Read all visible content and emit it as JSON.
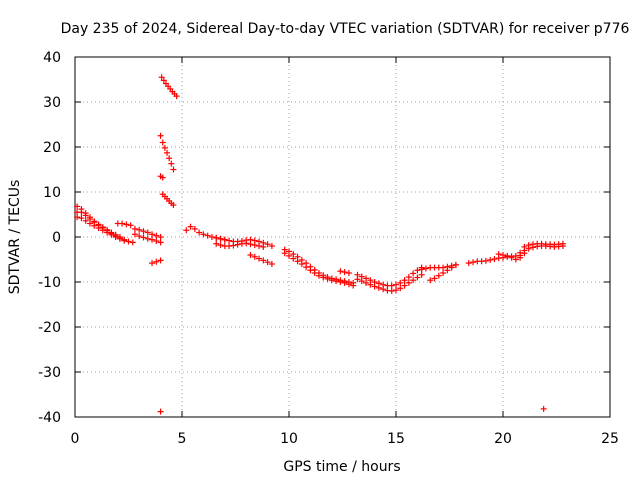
{
  "chart_data": {
    "type": "scatter",
    "title": "Day 235 of 2024, Sidereal Day-to-day VTEC variation (SDTVAR) for receiver p776",
    "xlabel": "GPS time / hours",
    "ylabel": "SDTVAR / TECUs",
    "xlim": [
      0,
      25
    ],
    "ylim": [
      -40,
      40
    ],
    "xticks": [
      0,
      5,
      10,
      15,
      20,
      25
    ],
    "yticks": [
      -40,
      -30,
      -20,
      -10,
      0,
      10,
      20,
      30,
      40
    ],
    "grid": true,
    "marker": "+",
    "color": "#ff0000",
    "series": [
      {
        "name": "SDTVAR",
        "segments": [
          {
            "x": [
              0.1,
              0.3,
              0.5,
              0.7,
              0.9,
              1.1,
              1.3,
              1.5,
              1.7,
              1.9,
              2.1
            ],
            "y": [
              5.5,
              5.5,
              4.8,
              4.0,
              3.3,
              2.6,
              2.0,
              1.4,
              0.8,
              0.2,
              -0.3
            ]
          },
          {
            "x": [
              0.1,
              0.3,
              0.5,
              0.7,
              0.9,
              1.1,
              1.3,
              1.5,
              1.7,
              1.9,
              2.1,
              2.3
            ],
            "y": [
              6.8,
              6.2,
              5.3,
              4.4,
              3.5,
              2.8,
              2.2,
              1.6,
              1.0,
              0.5,
              0.0,
              -0.6
            ]
          },
          {
            "x": [
              0.1,
              0.3,
              0.5,
              0.7,
              0.9,
              1.1,
              1.3,
              1.5,
              1.7,
              1.9,
              2.1,
              2.3,
              2.5,
              2.7
            ],
            "y": [
              4.4,
              4.2,
              3.6,
              3.0,
              2.5,
              2.0,
              1.5,
              1.0,
              0.5,
              0.0,
              -0.4,
              -0.8,
              -1.0,
              -1.2
            ]
          },
          {
            "x": [
              2.0,
              2.2,
              2.4,
              2.6
            ],
            "y": [
              3.0,
              3.0,
              2.8,
              2.6
            ]
          },
          {
            "x": [
              2.8,
              3.0,
              3.2,
              3.4,
              3.6,
              3.8,
              4.0
            ],
            "y": [
              1.8,
              1.6,
              1.3,
              1.0,
              0.6,
              0.3,
              0.0
            ]
          },
          {
            "x": [
              2.8,
              3.0,
              3.2,
              3.4,
              3.6,
              3.8,
              4.0
            ],
            "y": [
              0.6,
              0.2,
              -0.1,
              -0.4,
              -0.6,
              -0.9,
              -1.2
            ]
          },
          {
            "x": [
              3.6,
              3.8,
              4.0
            ],
            "y": [
              -5.8,
              -5.5,
              -5.2
            ]
          },
          {
            "x": [
              4.0,
              4.1
            ],
            "y": [
              13.5,
              13.2
            ]
          },
          {
            "x": [
              4.05,
              4.15,
              4.25,
              4.35,
              4.45,
              4.55,
              4.65,
              4.75
            ],
            "y": [
              35.5,
              34.8,
              34.1,
              33.5,
              32.9,
              32.3,
              31.8,
              31.3
            ]
          },
          {
            "x": [
              4.0,
              4.1,
              4.2,
              4.3,
              4.4,
              4.5,
              4.6
            ],
            "y": [
              22.5,
              21.0,
              19.8,
              18.7,
              17.5,
              16.3,
              15.0
            ]
          },
          {
            "x": [
              4.1,
              4.2,
              4.3,
              4.4,
              4.5,
              4.6
            ],
            "y": [
              9.5,
              9.0,
              8.5,
              8.0,
              7.5,
              7.1
            ]
          },
          {
            "x": [
              5.2,
              5.4,
              5.6,
              5.8,
              6.0,
              6.2,
              6.4,
              6.6,
              6.8,
              7.0
            ],
            "y": [
              1.5,
              2.3,
              1.8,
              1.0,
              0.6,
              0.3,
              0.0,
              -0.2,
              -0.4,
              -0.6
            ]
          },
          {
            "x": [
              6.6,
              6.8,
              7.0,
              7.2,
              7.4,
              7.6,
              7.8,
              8.0,
              8.2,
              8.4,
              8.6,
              8.8,
              9.0,
              9.2
            ],
            "y": [
              -0.2,
              -0.4,
              -0.6,
              -0.8,
              -1.0,
              -1.0,
              -0.9,
              -0.7,
              -0.6,
              -0.8,
              -1.0,
              -1.3,
              -1.6,
              -2.0
            ]
          },
          {
            "x": [
              6.6,
              6.8,
              7.0,
              7.2,
              7.4,
              7.6,
              7.8,
              8.0,
              8.2,
              8.4,
              8.6,
              8.8
            ],
            "y": [
              -1.5,
              -1.8,
              -2.0,
              -2.0,
              -1.9,
              -1.7,
              -1.5,
              -1.4,
              -1.6,
              -1.8,
              -2.0,
              -2.2
            ]
          },
          {
            "x": [
              8.2,
              8.4,
              8.6,
              8.8,
              9.0,
              9.2
            ],
            "y": [
              -4.0,
              -4.4,
              -4.8,
              -5.2,
              -5.6,
              -6.0
            ]
          },
          {
            "x": [
              9.8,
              10.0,
              10.2,
              10.4,
              10.6,
              10.8,
              11.0,
              11.2,
              11.4,
              11.6,
              11.8,
              12.0,
              12.2,
              12.4,
              12.6,
              12.8,
              13.0
            ],
            "y": [
              -2.8,
              -3.2,
              -3.8,
              -4.4,
              -5.1,
              -5.8,
              -6.6,
              -7.3,
              -8.0,
              -8.5,
              -8.9,
              -9.2,
              -9.4,
              -9.6,
              -9.8,
              -10.0,
              -10.2
            ]
          },
          {
            "x": [
              9.8,
              10.0,
              10.2,
              10.4,
              10.6,
              10.8,
              11.0,
              11.2,
              11.4,
              11.6,
              11.8,
              12.0,
              12.2,
              12.4,
              12.6,
              12.8,
              13.0
            ],
            "y": [
              -3.6,
              -4.2,
              -4.8,
              -5.4,
              -6.0,
              -6.7,
              -7.4,
              -8.0,
              -8.6,
              -9.0,
              -9.3,
              -9.6,
              -9.8,
              -10.0,
              -10.2,
              -10.5,
              -10.8
            ]
          },
          {
            "x": [
              12.4,
              12.6,
              12.8
            ],
            "y": [
              -7.6,
              -7.8,
              -8.0
            ]
          },
          {
            "x": [
              13.2,
              13.4,
              13.6,
              13.8,
              14.0,
              14.2,
              14.4,
              14.6,
              14.8,
              15.0,
              15.2,
              15.4,
              15.6,
              15.8,
              16.0,
              16.2
            ],
            "y": [
              -8.4,
              -8.8,
              -9.2,
              -9.6,
              -10.0,
              -10.3,
              -10.6,
              -10.8,
              -10.8,
              -10.6,
              -10.2,
              -9.6,
              -8.9,
              -8.1,
              -7.4,
              -6.8
            ]
          },
          {
            "x": [
              13.2,
              13.4,
              13.6,
              13.8,
              14.0,
              14.2,
              14.4,
              14.6,
              14.8,
              15.0,
              15.2,
              15.4,
              15.6,
              15.8,
              16.0,
              16.2
            ],
            "y": [
              -9.4,
              -9.8,
              -10.2,
              -10.6,
              -11.0,
              -11.3,
              -11.6,
              -11.9,
              -12.0,
              -11.8,
              -11.4,
              -10.8,
              -10.2,
              -9.6,
              -9.0,
              -8.4
            ]
          },
          {
            "x": [
              16.2,
              16.4,
              16.6,
              16.8,
              17.0,
              17.2,
              17.4,
              17.6,
              17.8
            ],
            "y": [
              -7.2,
              -7.0,
              -6.8,
              -6.8,
              -6.8,
              -6.8,
              -6.6,
              -6.4,
              -6.2
            ]
          },
          {
            "x": [
              16.6,
              16.8,
              17.0,
              17.2,
              17.4,
              17.6,
              17.8
            ],
            "y": [
              -9.6,
              -9.2,
              -8.6,
              -8.0,
              -7.4,
              -6.8,
              -6.2
            ]
          },
          {
            "x": [
              18.4,
              18.6,
              18.8,
              19.0,
              19.2,
              19.4,
              19.6,
              19.8,
              20.0,
              20.2,
              20.4,
              20.6,
              20.8
            ],
            "y": [
              -5.8,
              -5.6,
              -5.4,
              -5.4,
              -5.3,
              -5.1,
              -4.9,
              -4.7,
              -4.6,
              -4.4,
              -4.3,
              -4.2,
              -4.1
            ]
          },
          {
            "x": [
              19.8,
              20.0,
              20.2,
              20.4,
              20.6,
              20.8,
              21.0
            ],
            "y": [
              -3.8,
              -4.0,
              -4.2,
              -4.6,
              -5.0,
              -4.6,
              -3.6
            ]
          },
          {
            "x": [
              20.8,
              21.0,
              21.2,
              21.4,
              21.6,
              21.8,
              22.0,
              22.2,
              22.4,
              22.6,
              22.8
            ],
            "y": [
              -3.5,
              -3.0,
              -2.6,
              -2.3,
              -2.1,
              -2.0,
              -2.0,
              -2.1,
              -2.2,
              -2.1,
              -2.0
            ]
          },
          {
            "x": [
              21.0,
              21.2,
              21.4,
              21.6,
              21.8,
              22.0,
              22.2,
              22.4,
              22.6,
              22.8
            ],
            "y": [
              -2.2,
              -1.8,
              -1.6,
              -1.5,
              -1.5,
              -1.6,
              -1.6,
              -1.7,
              -1.6,
              -1.5
            ]
          },
          {
            "x": [
              4.0
            ],
            "y": [
              -38.8
            ]
          },
          {
            "x": [
              21.9
            ],
            "y": [
              -38.2
            ]
          }
        ]
      }
    ]
  }
}
